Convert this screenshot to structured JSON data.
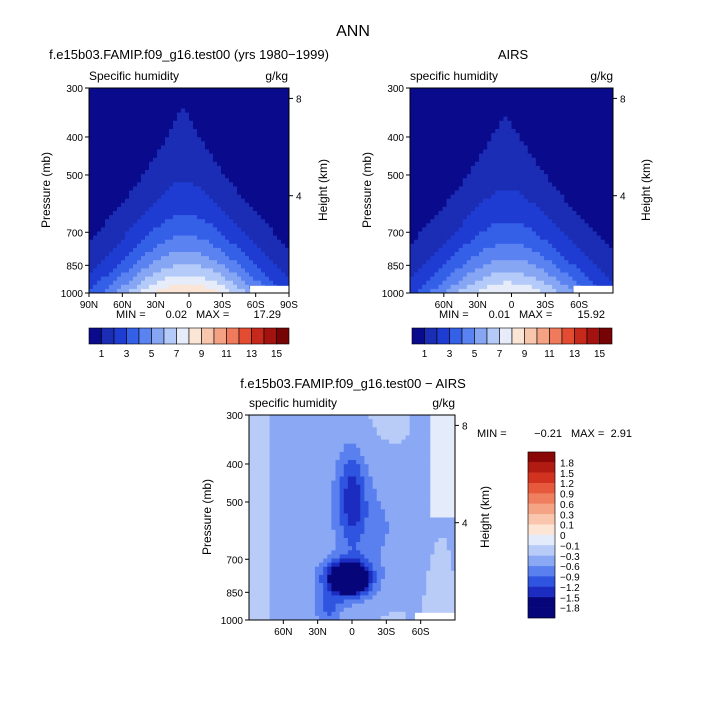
{
  "page_title": "ANN",
  "colors": {
    "abs_palette": [
      "#0a0a8c",
      "#1a2db4",
      "#1f3cd2",
      "#3460e8",
      "#5a82f0",
      "#86a6f4",
      "#b4caf8",
      "#e6ecfa",
      "#fbe5d7",
      "#f8c6ad",
      "#f4a283",
      "#ef7a5c",
      "#e34c31",
      "#c6281b",
      "#a2130f",
      "#770404"
    ],
    "diff_palette": [
      "#06067a",
      "#1c2cc0",
      "#2f54e0",
      "#5a80ef",
      "#8aa8f3",
      "#b9ccf7",
      "#e4ecfb",
      "#fde5d6",
      "#f9c6ad",
      "#f4a384",
      "#ef7f5e",
      "#e6593c",
      "#d23321",
      "#b11b12",
      "#8a0707"
    ]
  },
  "chart_data": [
    {
      "type": "heatmap",
      "id": "model",
      "title": "f.e15b03.FAMIP.f09_g16.test00 (yrs 1980−1999)",
      "subtitle_left": "Specific humidity",
      "subtitle_right": "g/kg",
      "ylabel": "Pressure (mb)",
      "y2label": "Height (km)",
      "y_ticks": [
        "300",
        "400",
        "500",
        "700",
        "850",
        "1000"
      ],
      "y_values": [
        300,
        400,
        500,
        700,
        850,
        1000
      ],
      "y2_ticks": [
        "8",
        "4"
      ],
      "y2_values": [
        8,
        4
      ],
      "x_ticks": [
        "90N",
        "60N",
        "30N",
        "0",
        "30S",
        "60S",
        "90S"
      ],
      "x_values": [
        90,
        60,
        30,
        0,
        -30,
        -60,
        -90
      ],
      "min_label": "MIN =",
      "min_value": "0.02",
      "max_label": "MAX =",
      "max_value": "17.29",
      "peak": 17.29,
      "colorbar": {
        "labels": [
          "1",
          "3",
          "5",
          "7",
          "9",
          "11",
          "13",
          "15"
        ],
        "levels": [
          1,
          3,
          5,
          7,
          9,
          11,
          13,
          15
        ]
      }
    },
    {
      "type": "heatmap",
      "id": "obs",
      "title": "AIRS",
      "subtitle_left": "specific humidity",
      "subtitle_right": "g/kg",
      "ylabel": "Pressure (mb)",
      "y2label": "Height (km)",
      "y_ticks": [
        "300",
        "400",
        "500",
        "700",
        "850",
        "1000"
      ],
      "y_values": [
        300,
        400,
        500,
        700,
        850,
        1000
      ],
      "y2_ticks": [
        "8",
        "4"
      ],
      "y2_values": [
        8,
        4
      ],
      "x_ticks": [
        "60N",
        "30N",
        "0",
        "30S",
        "60S"
      ],
      "x_values": [
        60,
        30,
        0,
        -30,
        -60
      ],
      "min_label": "MIN =",
      "min_value": "0.01",
      "max_label": "MAX =",
      "max_value": "15.92",
      "peak": 15.92,
      "colorbar": {
        "labels": [
          "1",
          "3",
          "5",
          "7",
          "9",
          "11",
          "13",
          "15"
        ],
        "levels": [
          1,
          3,
          5,
          7,
          9,
          11,
          13,
          15
        ]
      }
    },
    {
      "type": "heatmap",
      "id": "diff",
      "title": "f.e15b03.FAMIP.f09_g16.test00 − AIRS",
      "subtitle_left": "specific humidity",
      "subtitle_right": "g/kg",
      "ylabel": "Pressure (mb)",
      "y2label": "Height (km)",
      "y_ticks": [
        "300",
        "400",
        "500",
        "700",
        "850",
        "1000"
      ],
      "y_values": [
        300,
        400,
        500,
        700,
        850,
        1000
      ],
      "y2_ticks": [
        "8",
        "4"
      ],
      "y2_values": [
        8,
        4
      ],
      "x_ticks": [
        "60N",
        "30N",
        "0",
        "30S",
        "60S"
      ],
      "x_values": [
        60,
        30,
        0,
        -30,
        -60
      ],
      "min_label": "MIN =",
      "min_value": "−0.21",
      "max_label": "MAX =",
      "max_value": "2.91",
      "colorbar": {
        "labels": [
          "1.8",
          "1.5",
          "1.2",
          "0.9",
          "0.6",
          "0.3",
          "0.1",
          "0",
          "−0.1",
          "−0.3",
          "−0.6",
          "−0.9",
          "−1.2",
          "−1.5",
          "−1.8"
        ]
      }
    }
  ]
}
